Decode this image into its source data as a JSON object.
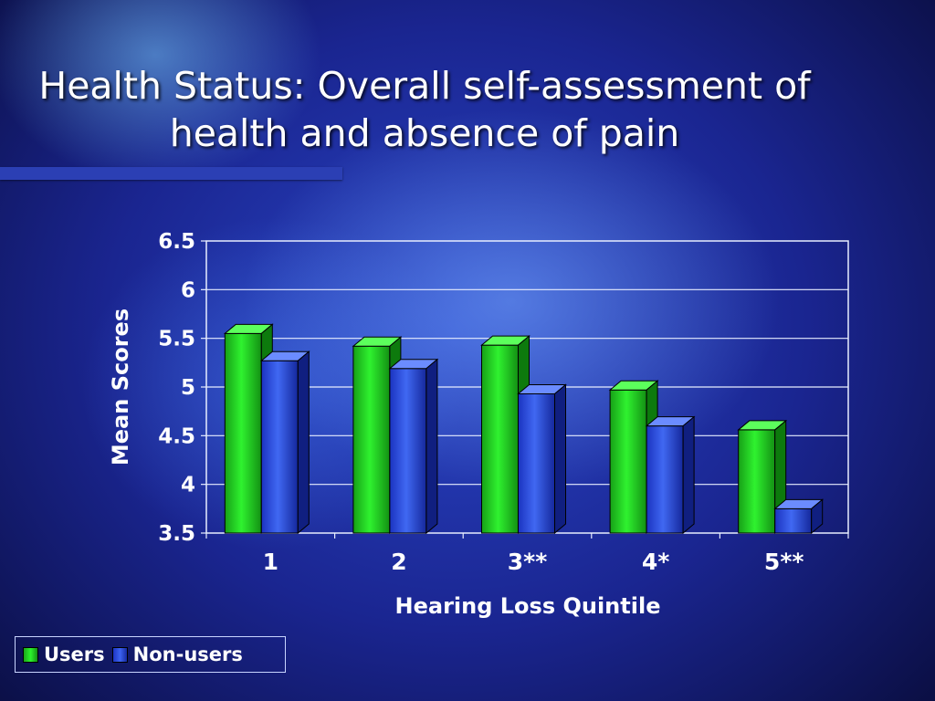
{
  "slide": {
    "title_line1": "Health Status: Overall self-assessment of",
    "title_line2": "health and absence of pain"
  },
  "chart_data": {
    "type": "bar",
    "title": "",
    "categories": [
      "1",
      "2",
      "3**",
      "4*",
      "5**"
    ],
    "series": [
      {
        "name": "Users",
        "values": [
          5.55,
          5.42,
          5.43,
          4.97,
          4.56
        ],
        "color": "#1ecf1e"
      },
      {
        "name": "Non-users",
        "values": [
          5.27,
          5.19,
          4.93,
          4.6,
          3.75
        ],
        "color": "#2f4fe0"
      }
    ],
    "xlabel": "Hearing Loss Quintile",
    "ylabel": "Mean Scores",
    "ylim": [
      3.5,
      6.5
    ],
    "yticks": [
      "3.5",
      "4",
      "4.5",
      "5",
      "5.5",
      "6",
      "6.5"
    ],
    "grid": true,
    "legend_position": "bottom-left"
  }
}
